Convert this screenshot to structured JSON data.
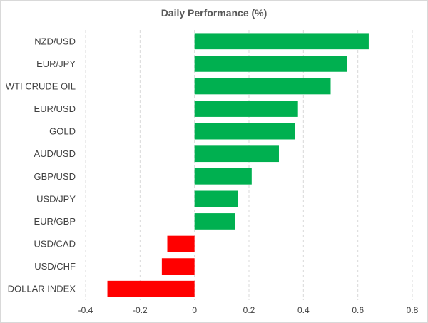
{
  "chart_data": {
    "type": "bar",
    "orientation": "horizontal",
    "title": "Daily Performance  (%)",
    "categories": [
      "NZD/USD",
      "EUR/JPY",
      "WTI CRUDE OIL",
      "EUR/USD",
      "GOLD",
      "AUD/USD",
      "GBP/USD",
      "USD/JPY",
      "EUR/GBP",
      "USD/CAD",
      "USD/CHF",
      "DOLLAR INDEX"
    ],
    "values": [
      0.64,
      0.56,
      0.5,
      0.38,
      0.37,
      0.31,
      0.21,
      0.16,
      0.15,
      -0.1,
      -0.12,
      -0.32
    ],
    "xlim": [
      -0.4,
      0.8
    ],
    "xticks": [
      -0.4,
      -0.2,
      0,
      0.2,
      0.4,
      0.6,
      0.8
    ],
    "xtick_labels": [
      "-0.4",
      "-0.2",
      "0",
      "0.2",
      "0.4",
      "0.6",
      "0.8"
    ],
    "grid": "vertical dashed",
    "legend": "none",
    "colors": {
      "positive": "#00b050",
      "negative": "#ff0000",
      "grid": "#d9d9d9",
      "text": "#404040",
      "title": "#595959"
    }
  }
}
